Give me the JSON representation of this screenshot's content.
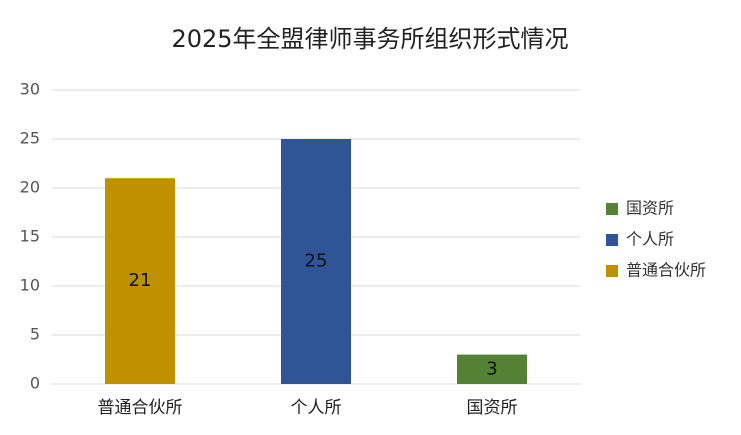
{
  "chart_data": {
    "type": "bar",
    "title": "2025年全盟律师事务所组织形式情况",
    "categories": [
      "普通合伙所",
      "个人所",
      "国资所"
    ],
    "values": [
      21,
      25,
      3
    ],
    "colors": [
      "#bf9000",
      "#2f5597",
      "#548235"
    ],
    "ylim": [
      0,
      30
    ],
    "yticks": [
      0,
      5,
      10,
      15,
      20,
      25,
      30
    ],
    "grid": true,
    "legend": "right"
  }
}
